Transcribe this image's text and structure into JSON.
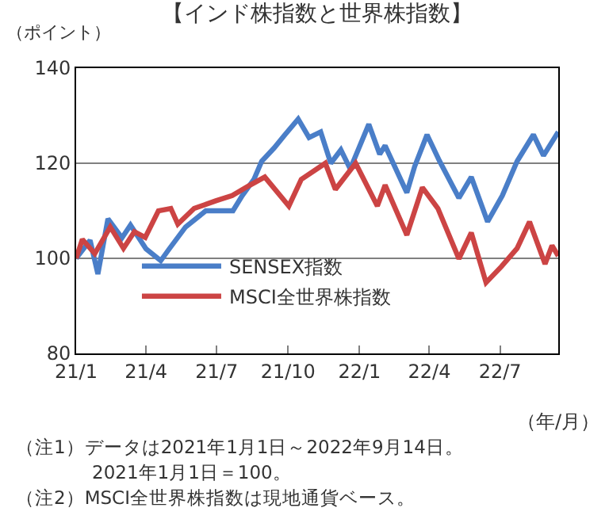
{
  "chart_data": {
    "type": "line",
    "title": "【インド株指数と世界株指数】",
    "ylabel": "（ポイント）",
    "xlabel": "（年/月）",
    "x": [
      "2021-01-01",
      "2021-01-19",
      "2021-01-29",
      "2021-02-11",
      "2021-03-01",
      "2021-03-12",
      "2021-04-01",
      "2021-04-20",
      "2021-05-01",
      "2021-05-22",
      "2021-06-17",
      "2021-07-22",
      "2021-08-03",
      "2021-08-18",
      "2021-08-28",
      "2021-09-13",
      "2021-09-27",
      "2021-10-14",
      "2021-10-28",
      "2021-11-12",
      "2021-11-25",
      "2021-12-08",
      "2021-12-20",
      "2022-01-13",
      "2022-01-27",
      "2022-02-03",
      "2022-03-03",
      "2022-03-13",
      "2022-03-29",
      "2022-04-14",
      "2022-05-09",
      "2022-05-25",
      "2022-06-15",
      "2022-07-04",
      "2022-07-23",
      "2022-08-13",
      "2022-08-26",
      "2022-09-14"
    ],
    "series": [
      {
        "name": "SENSEX指数",
        "color": "#4a7ec8",
        "values": [
          100,
          103.8,
          96.7,
          108.3,
          104.3,
          107,
          102,
          99.5,
          102,
          106.6,
          110,
          110,
          113.2,
          116.6,
          120.4,
          123.2,
          126,
          129.3,
          125.4,
          126.6,
          120,
          122.8,
          118.8,
          128.2,
          121.9,
          123.7,
          113.8,
          119.3,
          126,
          120.5,
          112.7,
          117.1,
          107.7,
          113.2,
          120.4,
          126,
          121.6,
          126.6
        ]
      },
      {
        "name": "MSCI全世界株指数",
        "color": "#cc4444",
        "x": [
          "2021-01-01",
          "2021-01-09",
          "2021-01-25",
          "2021-02-14",
          "2021-03-03",
          "2021-03-17",
          "2021-03-31",
          "2021-04-17",
          "2021-05-03",
          "2021-05-12",
          "2021-06-02",
          "2021-06-30",
          "2021-07-21",
          "2021-08-13",
          "2021-09-01",
          "2021-10-02",
          "2021-10-18",
          "2021-11-18",
          "2021-12-01",
          "2021-12-27",
          "2022-01-24",
          "2022-02-03",
          "2022-03-03",
          "2022-03-23",
          "2022-04-12",
          "2022-05-09",
          "2022-05-25",
          "2022-06-13",
          "2022-07-03",
          "2022-07-23",
          "2022-08-08",
          "2022-08-28",
          "2022-09-06",
          "2022-09-14"
        ],
        "values": [
          100,
          104,
          101,
          106.6,
          102.1,
          105.6,
          104.4,
          110,
          110.5,
          107.2,
          110.5,
          112.1,
          113.2,
          115.4,
          117.1,
          111,
          116.6,
          120,
          114.5,
          120,
          111,
          115.4,
          104.9,
          114.9,
          110.5,
          99.9,
          105.4,
          94.9,
          98.3,
          102.1,
          107.7,
          98.8,
          102.7,
          100.5
        ]
      }
    ],
    "xlim": [
      "2021-01-01",
      "2022-09-14"
    ],
    "xticks": [
      {
        "value": "2021-01-01",
        "label": "21/1"
      },
      {
        "value": "2021-04-01",
        "label": "21/4"
      },
      {
        "value": "2021-07-01",
        "label": "21/7"
      },
      {
        "value": "2021-10-01",
        "label": "21/10"
      },
      {
        "value": "2022-01-01",
        "label": "22/1"
      },
      {
        "value": "2022-04-01",
        "label": "22/4"
      },
      {
        "value": "2022-07-01",
        "label": "22/7"
      }
    ],
    "ylim": [
      80,
      140
    ],
    "yticks": [
      80,
      100,
      120,
      140
    ],
    "grid": "y",
    "legend": "bottom left",
    "marker": "none",
    "line_style": "solid",
    "annotations": [
      "（注1）データは2021年1月1日～2022年9月14日。",
      "　　　　2021年1月1日＝100。",
      "（注2）MSCI全世界株指数は現地通貨ベース。"
    ]
  }
}
